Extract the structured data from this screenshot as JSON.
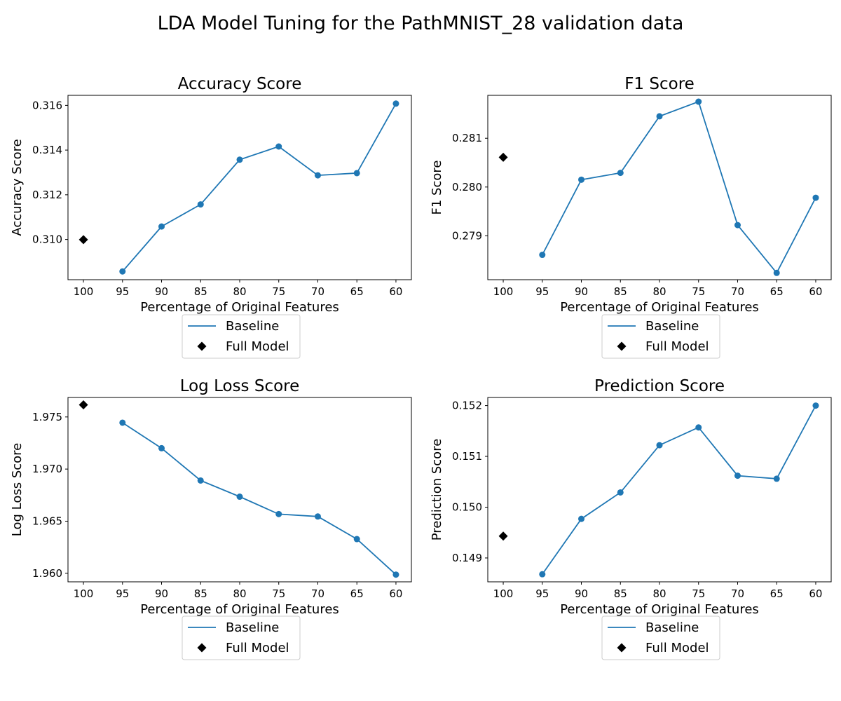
{
  "figure": {
    "title": "LDA Model Tuning for the PathMNIST_28 validation data"
  },
  "colors": {
    "baseline": "#1f77b4",
    "full_model": "#000000"
  },
  "chart_data": [
    {
      "type": "line",
      "title": "Accuracy Score",
      "xlabel": "Percentage of Original Features",
      "ylabel": "Accuracy Score",
      "categories": [
        "100",
        "95",
        "90",
        "85",
        "80",
        "75",
        "70",
        "65",
        "60"
      ],
      "series": [
        {
          "name": "Baseline",
          "x": [
            "95",
            "90",
            "85",
            "80",
            "75",
            "70",
            "65",
            "60"
          ],
          "values": [
            0.30857,
            0.31058,
            0.31157,
            0.31357,
            0.31416,
            0.31287,
            0.31297,
            0.31608
          ]
        },
        {
          "name": "Full Model",
          "x": [
            "100"
          ],
          "values": [
            0.30999
          ]
        }
      ],
      "yticks": [
        0.31,
        0.312,
        0.314,
        0.316
      ],
      "ytick_labels": [
        "0.310",
        "0.312",
        "0.314",
        "0.316"
      ],
      "ylim": [
        0.3082,
        0.31645
      ],
      "grid": false,
      "legend": "below"
    },
    {
      "type": "line",
      "title": "F1 Score",
      "xlabel": "Percentage of Original Features",
      "ylabel": "F1 Score",
      "categories": [
        "100",
        "95",
        "90",
        "85",
        "80",
        "75",
        "70",
        "65",
        "60"
      ],
      "series": [
        {
          "name": "Baseline",
          "x": [
            "95",
            "90",
            "85",
            "80",
            "75",
            "70",
            "65",
            "60"
          ],
          "values": [
            0.27861,
            0.28015,
            0.28029,
            0.28145,
            0.28175,
            0.27922,
            0.27824,
            0.27978
          ]
        },
        {
          "name": "Full Model",
          "x": [
            "100"
          ],
          "values": [
            0.28061
          ]
        }
      ],
      "yticks": [
        0.279,
        0.28,
        0.281
      ],
      "ytick_labels": [
        "0.279",
        "0.280",
        "0.281"
      ],
      "ylim": [
        0.2781,
        0.28188
      ],
      "grid": false,
      "legend": "below"
    },
    {
      "type": "line",
      "title": "Log Loss Score",
      "xlabel": "Percentage of Original Features",
      "ylabel": "Log Loss Score",
      "categories": [
        "100",
        "95",
        "90",
        "85",
        "80",
        "75",
        "70",
        "65",
        "60"
      ],
      "series": [
        {
          "name": "Baseline",
          "x": [
            "95",
            "90",
            "85",
            "80",
            "75",
            "70",
            "65",
            "60"
          ],
          "values": [
            1.97445,
            1.972,
            1.9689,
            1.96735,
            1.96568,
            1.96545,
            1.96328,
            1.95987
          ]
        },
        {
          "name": "Full Model",
          "x": [
            "100"
          ],
          "values": [
            1.97616
          ]
        }
      ],
      "yticks": [
        1.96,
        1.965,
        1.97,
        1.975
      ],
      "ytick_labels": [
        "1.960",
        "1.965",
        "1.970",
        "1.975"
      ],
      "ylim": [
        1.95918,
        1.97687
      ],
      "grid": false,
      "legend": "below"
    },
    {
      "type": "line",
      "title": "Prediction Score",
      "xlabel": "Percentage of Original Features",
      "ylabel": "Prediction Score",
      "categories": [
        "100",
        "95",
        "90",
        "85",
        "80",
        "75",
        "70",
        "65",
        "60"
      ],
      "series": [
        {
          "name": "Baseline",
          "x": [
            "95",
            "90",
            "85",
            "80",
            "75",
            "70",
            "65",
            "60"
          ],
          "values": [
            0.14868,
            0.14977,
            0.15029,
            0.15122,
            0.15157,
            0.15062,
            0.15056,
            0.152
          ]
        },
        {
          "name": "Full Model",
          "x": [
            "100"
          ],
          "values": [
            0.14943
          ]
        }
      ],
      "yticks": [
        0.149,
        0.15,
        0.151,
        0.152
      ],
      "ytick_labels": [
        "0.149",
        "0.150",
        "0.151",
        "0.152"
      ],
      "ylim": [
        0.14853,
        0.15216
      ],
      "grid": false,
      "legend": "below"
    }
  ]
}
